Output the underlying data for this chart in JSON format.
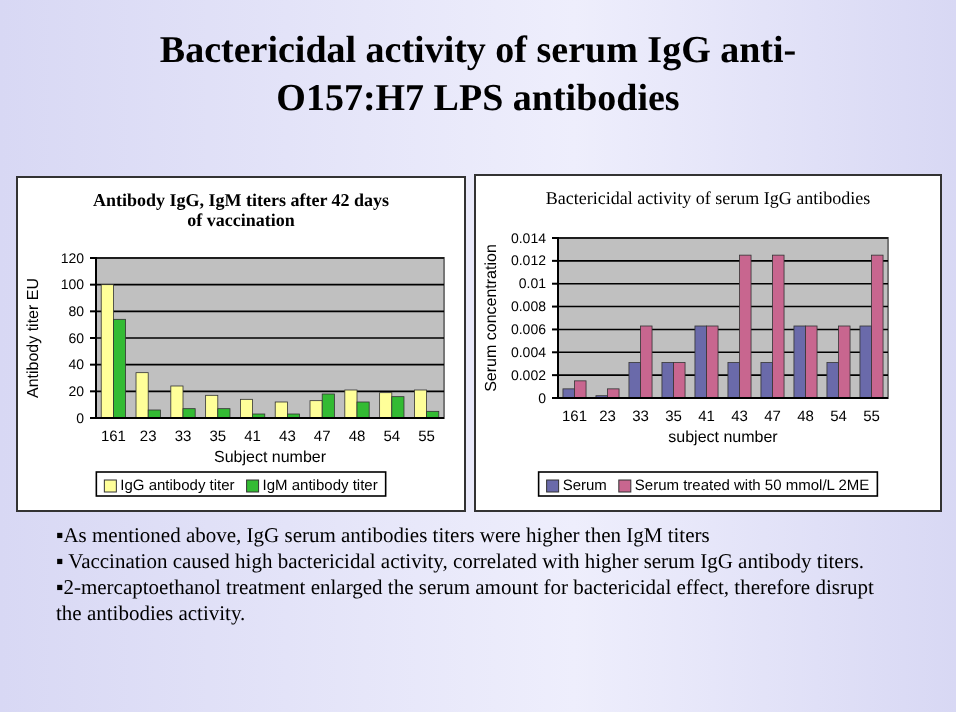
{
  "chart_data": [
    {
      "type": "other",
      "title": "Bactericidal activity of serum IgG anti-O157:H7 LPS antibodies"
    },
    {
      "type": "bar",
      "title": "Antibody IgG, IgM titers after 42 days of vaccination",
      "xlabel": "Subject number",
      "ylabel": "Antibody titer EU",
      "categories": [
        "161",
        "23",
        "33",
        "35",
        "41",
        "43",
        "47",
        "48",
        "54",
        "55"
      ],
      "series": [
        {
          "name": "IgG antibody titer",
          "color": "#ffff99",
          "values": [
            100,
            34,
            24,
            17,
            14,
            12,
            13,
            21,
            19,
            21
          ]
        },
        {
          "name": "IgM antibody titer",
          "color": "#33bb33",
          "values": [
            74,
            6,
            7,
            7,
            3,
            3,
            18,
            12,
            16,
            5
          ]
        }
      ],
      "ylim": [
        0,
        120
      ],
      "yticks": [
        0,
        20,
        40,
        60,
        80,
        100,
        120
      ],
      "grid": "y",
      "legend": "bottom"
    },
    {
      "type": "bar",
      "title": "Bactericidal activity of serum IgG antibodies",
      "xlabel": "subject number",
      "ylabel": "Serum concentration",
      "categories": [
        "161",
        "23",
        "33",
        "35",
        "41",
        "43",
        "47",
        "48",
        "54",
        "55"
      ],
      "series": [
        {
          "name": "Serum",
          "color": "#6a6aaa",
          "values": [
            0.0008,
            0.0002,
            0.0031,
            0.0031,
            0.0063,
            0.0031,
            0.0031,
            0.0063,
            0.0031,
            0.0063
          ]
        },
        {
          "name": "Serum treated with 50 mmol/L 2ME",
          "color": "#c8668f",
          "values": [
            0.0015,
            0.0008,
            0.0063,
            0.0031,
            0.0063,
            0.0125,
            0.0125,
            0.0063,
            0.0063,
            0.0125
          ]
        }
      ],
      "ylim": [
        0,
        0.014
      ],
      "yticks": [
        0,
        0.002,
        0.004,
        0.006,
        0.008,
        0.01,
        0.012,
        0.014
      ],
      "grid": "y",
      "legend": "bottom"
    },
    {
      "type": "other",
      "annotations": [
        "▪As mentioned above, IgG serum antibodies titers were higher then IgM titers",
        "▪ Vaccination caused high bactericidal activity, correlated with higher serum IgG antibody titers.",
        "▪2-mercaptoethanol treatment enlarged the serum amount  for bactericidal  effect, therefore disrupt the antibodies activity."
      ]
    }
  ]
}
